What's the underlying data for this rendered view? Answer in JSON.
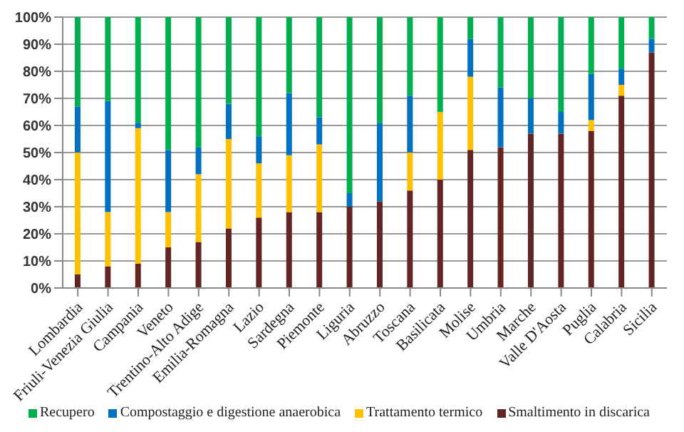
{
  "chart_data": {
    "type": "bar",
    "stacked": true,
    "categories": [
      "Lombardia",
      "Friuli-Venezia Giulia",
      "Campania",
      "Veneto",
      "Trentino-Alto Adige",
      "Emilia-Romagna",
      "Lazio",
      "Sardegna",
      "Piemonte",
      "Liguria",
      "Abruzzo",
      "Toscana",
      "Basilicata",
      "Molise",
      "Umbria",
      "Marche",
      "Valle D'Aosta",
      "Puglia",
      "Calabria",
      "Sicilia"
    ],
    "series": [
      {
        "name": "Smaltimento in discarica",
        "color": "#632523",
        "values": [
          5,
          8,
          9,
          15,
          17,
          22,
          26,
          28,
          28,
          30,
          32,
          36,
          40,
          51,
          52,
          57,
          57,
          58,
          71,
          87
        ]
      },
      {
        "name": "Trattamento termico",
        "color": "#ffc000",
        "values": [
          45,
          20,
          50,
          13,
          25,
          33,
          20,
          21,
          25,
          0,
          0,
          14,
          25,
          27,
          0,
          0,
          0,
          4,
          4,
          0
        ]
      },
      {
        "name": "Compostaggio e digestione anaerobica",
        "color": "#0070c0",
        "values": [
          17,
          41,
          2,
          23,
          10,
          13,
          10,
          23,
          10,
          5,
          29,
          21,
          0,
          14,
          22,
          13,
          8,
          17,
          6,
          5
        ]
      },
      {
        "name": "Recupero",
        "color": "#00b050",
        "values": [
          33,
          31,
          39,
          49,
          48,
          32,
          44,
          28,
          37,
          65,
          39,
          29,
          35,
          8,
          26,
          30,
          35,
          21,
          19,
          8
        ]
      }
    ],
    "ylim": [
      0,
      100
    ],
    "yticks": [
      {
        "value": 0,
        "label": "0%"
      },
      {
        "value": 10,
        "label": "10%"
      },
      {
        "value": 20,
        "label": "20%"
      },
      {
        "value": 30,
        "label": "30%"
      },
      {
        "value": 40,
        "label": "40%"
      },
      {
        "value": 50,
        "label": "50%"
      },
      {
        "value": 60,
        "label": "60%"
      },
      {
        "value": 70,
        "label": "70%"
      },
      {
        "value": 80,
        "label": "80%"
      },
      {
        "value": 90,
        "label": "90%"
      },
      {
        "value": 100,
        "label": "100%"
      }
    ],
    "grid": "y",
    "legend": "bottom"
  }
}
